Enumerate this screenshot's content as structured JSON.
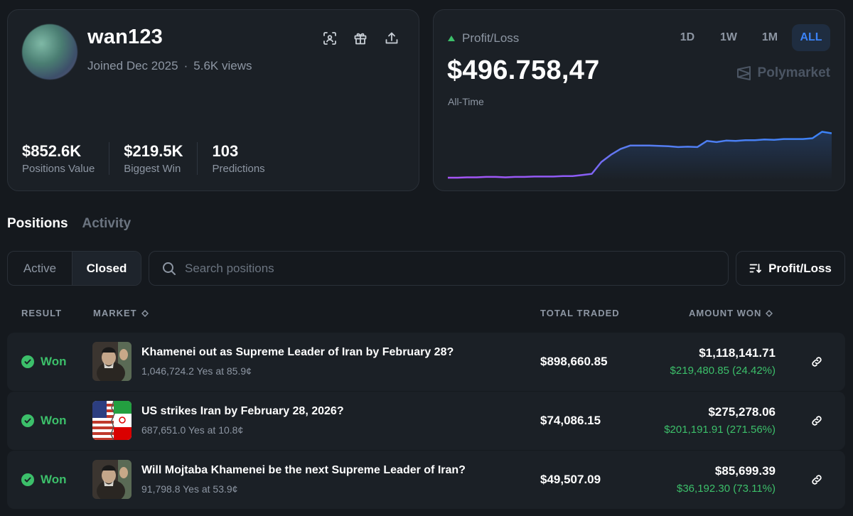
{
  "profile": {
    "username": "wan123",
    "joined": "Joined Dec 2025",
    "separator": "·",
    "views": "5.6K views",
    "icons": [
      "scan-icon",
      "gift-icon",
      "share-icon"
    ],
    "stats": [
      {
        "value": "$852.6K",
        "label": "Positions Value"
      },
      {
        "value": "$219.5K",
        "label": "Biggest Win"
      },
      {
        "value": "103",
        "label": "Predictions"
      }
    ]
  },
  "pnl": {
    "label": "Profit/Loss",
    "value": "$496.758,47",
    "period": "All-Time",
    "ranges": [
      "1D",
      "1W",
      "1M",
      "ALL"
    ],
    "active_range": "ALL",
    "brand": "Polymarket",
    "colors": {
      "up": "#3cbf6a",
      "line_start": "#a855f7",
      "line_end": "#3b82f6"
    }
  },
  "chart_data": {
    "type": "line",
    "title": "Profit/Loss",
    "xlabel": "",
    "ylabel": "",
    "x": [
      0,
      1,
      2,
      3,
      4,
      5,
      6,
      7,
      8,
      9,
      10,
      11,
      12,
      13,
      14,
      15,
      16,
      17,
      18,
      19,
      20,
      21,
      22,
      23,
      24,
      25,
      26,
      27,
      28,
      29,
      30,
      31,
      32,
      33,
      34,
      35,
      36,
      37,
      38,
      39,
      40
    ],
    "values": [
      0,
      0,
      1,
      1,
      2,
      2,
      1,
      2,
      2,
      3,
      3,
      3,
      4,
      4,
      7,
      10,
      41,
      60,
      75,
      84,
      84,
      84,
      83,
      82,
      80,
      81,
      80,
      96,
      93,
      97,
      96,
      98,
      98,
      100,
      99,
      101,
      101,
      101,
      103,
      120,
      116
    ],
    "ylim": [
      0,
      130
    ]
  },
  "tabs": {
    "positions": "Positions",
    "activity": "Activity"
  },
  "filters": {
    "active": "Active",
    "closed": "Closed",
    "search_placeholder": "Search positions",
    "sort_label": "Profit/Loss"
  },
  "table": {
    "headers": {
      "result": "RESULT",
      "market": "MARKET",
      "total": "TOTAL TRADED",
      "amount": "AMOUNT WON"
    },
    "rows": [
      {
        "result": "Won",
        "title": "Khamenei out as Supreme Leader of Iran by February 28?",
        "sub": "1,046,724.2 Yes at 85.9¢",
        "total": "$898,660.85",
        "amount": "$1,118,141.71",
        "pnl": "$219,480.85 (24.42%)"
      },
      {
        "result": "Won",
        "title": "US strikes Iran by February 28, 2026?",
        "sub": "687,651.0 Yes at 10.8¢",
        "total": "$74,086.15",
        "amount": "$275,278.06",
        "pnl": "$201,191.91 (271.56%)"
      },
      {
        "result": "Won",
        "title": "Will Mojtaba Khamenei be the next Supreme Leader of Iran?",
        "sub": "91,798.8 Yes at 53.9¢",
        "total": "$49,507.09",
        "amount": "$85,699.39",
        "pnl": "$36,192.30 (73.11%)"
      }
    ]
  }
}
